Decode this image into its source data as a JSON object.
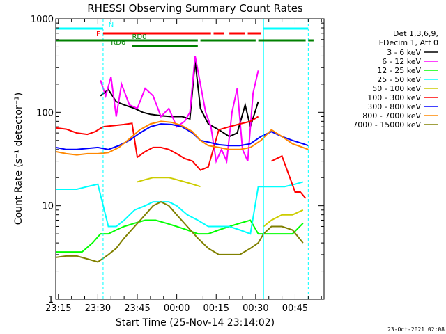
{
  "chart_data": {
    "type": "line",
    "title": "RHESSI Observing Summary Count Rates",
    "xlabel": "Start Time (25-Nov-14 23:14:02)",
    "ylabel": "Count Rate (s⁻¹ detector⁻¹)",
    "y_scale": "log",
    "ylim": [
      1,
      1000
    ],
    "xlim_minutes": [
      0,
      102
    ],
    "x_ticks": [
      {
        "label": "23:15",
        "t": 1
      },
      {
        "label": "23:30",
        "t": 16
      },
      {
        "label": "23:45",
        "t": 31
      },
      {
        "label": "00:00",
        "t": 46
      },
      {
        "label": "00:15",
        "t": 61
      },
      {
        "label": "00:30",
        "t": 76
      },
      {
        "label": "00:45",
        "t": 91
      }
    ],
    "y_ticks": [
      {
        "label": "1",
        "v": 1
      },
      {
        "label": "10",
        "v": 10
      },
      {
        "label": "100",
        "v": 100
      },
      {
        "label": "1000",
        "v": 1000
      }
    ],
    "legend_header": [
      "Det 1,3,6,9,",
      "FDecim 1, Att 0"
    ],
    "legend_position": "right",
    "series": [
      {
        "name": "3 - 6 keV",
        "color": "#000000",
        "t": [
          0,
          15,
          17,
          20,
          23,
          26,
          30,
          33,
          36,
          40,
          44,
          48,
          51,
          53,
          55,
          58,
          62,
          66,
          69,
          72,
          74,
          77,
          79,
          82,
          87,
          92,
          94
        ],
        "values": [
          null,
          null,
          150,
          175,
          130,
          120,
          110,
          100,
          95,
          92,
          90,
          90,
          85,
          350,
          110,
          75,
          65,
          55,
          60,
          120,
          70,
          130,
          null,
          null,
          null,
          null,
          null
        ]
      },
      {
        "name": "6 - 12 keV",
        "color": "#ff00ff",
        "t": [
          0,
          15,
          17,
          19,
          21,
          23,
          25,
          28,
          31,
          34,
          37,
          40,
          43,
          46,
          49,
          51,
          53,
          55,
          57,
          59,
          61,
          63,
          65,
          67,
          69,
          71,
          73,
          75,
          77,
          79
        ],
        "values": [
          null,
          null,
          220,
          150,
          240,
          90,
          200,
          120,
          110,
          180,
          150,
          90,
          110,
          70,
          80,
          100,
          400,
          200,
          100,
          70,
          30,
          40,
          30,
          100,
          180,
          40,
          30,
          160,
          280,
          null
        ]
      },
      {
        "name": "12 - 25 keV",
        "color": "#00ff00",
        "t": [
          0,
          5,
          10,
          14,
          17,
          20,
          23,
          26,
          30,
          34,
          38,
          42,
          46,
          50,
          54,
          58,
          62,
          66,
          70,
          74,
          77,
          79,
          82,
          86,
          90,
          94
        ],
        "values": [
          3.2,
          3.2,
          3.2,
          4,
          5,
          5,
          5.5,
          6,
          6.5,
          7,
          7,
          6.5,
          6,
          5.5,
          5,
          5,
          5.5,
          6,
          6.5,
          7,
          5,
          5,
          5,
          5,
          5,
          6.5
        ]
      },
      {
        "name": "25 - 50 keV",
        "color": "#00ffff",
        "t": [
          0,
          4,
          8,
          12,
          16,
          20,
          23,
          26,
          30,
          34,
          37,
          40,
          43,
          46,
          50,
          54,
          58,
          62,
          66,
          70,
          74,
          77,
          79,
          83,
          87,
          91,
          94
        ],
        "values": [
          15,
          15,
          15,
          16,
          17,
          6,
          6,
          7,
          9,
          10,
          11,
          11,
          11,
          10,
          8,
          7,
          6,
          6,
          6,
          5.5,
          5,
          16,
          16,
          16,
          16,
          17,
          18
        ]
      },
      {
        "name": "50 - 100 keV",
        "color": "#cccc00",
        "t": [
          0,
          28,
          31,
          34,
          37,
          40,
          43,
          46,
          49,
          52,
          55,
          58,
          64,
          70,
          74,
          76,
          77,
          79,
          82,
          86,
          90,
          94
        ],
        "values": [
          null,
          null,
          18,
          19,
          20,
          20,
          20,
          19,
          18,
          17,
          16,
          null,
          null,
          null,
          null,
          null,
          null,
          6,
          7,
          8,
          8,
          9
        ]
      },
      {
        "name": "100 - 300 keV",
        "color": "#ff0000",
        "t": [
          0,
          4,
          8,
          12,
          15,
          18,
          22,
          26,
          29,
          31,
          34,
          37,
          40,
          43,
          46,
          49,
          52,
          55,
          58,
          62,
          66,
          70,
          74,
          77,
          79,
          82,
          84,
          86,
          89,
          91,
          93,
          95
        ],
        "values": [
          68,
          66,
          60,
          58,
          62,
          70,
          72,
          74,
          76,
          33,
          38,
          42,
          42,
          40,
          36,
          32,
          30,
          24,
          26,
          65,
          70,
          75,
          80,
          90,
          null,
          30,
          32,
          34,
          20,
          14,
          14,
          12
        ]
      },
      {
        "name": "300 - 800 keV",
        "color": "#0000ff",
        "t": [
          0,
          4,
          8,
          12,
          16,
          20,
          24,
          28,
          32,
          36,
          40,
          44,
          48,
          52,
          55,
          58,
          62,
          66,
          70,
          74,
          78,
          82,
          86,
          90,
          94,
          96
        ],
        "values": [
          42,
          40,
          40,
          41,
          42,
          40,
          44,
          50,
          60,
          70,
          75,
          74,
          70,
          60,
          50,
          48,
          45,
          44,
          44,
          46,
          55,
          62,
          55,
          50,
          46,
          44
        ]
      },
      {
        "name": "800 - 7000 keV",
        "color": "#ff8800",
        "t": [
          0,
          4,
          8,
          12,
          16,
          20,
          24,
          28,
          32,
          36,
          40,
          44,
          48,
          52,
          55,
          58,
          62,
          66,
          70,
          74,
          78,
          82,
          86,
          90,
          94,
          96
        ],
        "values": [
          38,
          36,
          35,
          36,
          36,
          37,
          42,
          52,
          65,
          75,
          80,
          78,
          72,
          62,
          50,
          44,
          42,
          40,
          40,
          42,
          50,
          65,
          55,
          46,
          42,
          40
        ]
      },
      {
        "name": "7000 - 15000 keV",
        "color": "#808000",
        "t": [
          0,
          4,
          8,
          12,
          16,
          20,
          23,
          26,
          30,
          34,
          37,
          40,
          43,
          46,
          50,
          54,
          58,
          62,
          66,
          70,
          74,
          77,
          79,
          82,
          86,
          90,
          94
        ],
        "values": [
          2.8,
          2.9,
          2.9,
          2.7,
          2.5,
          3,
          3.5,
          4.5,
          6,
          8,
          10,
          11,
          10,
          8,
          6,
          4.5,
          3.5,
          3,
          3,
          3,
          3.5,
          4,
          5,
          6,
          6,
          5.5,
          4
        ]
      }
    ],
    "status_bars": [
      {
        "label": "N",
        "color": "#00ffff",
        "segments": [
          [
            0,
            18
          ],
          [
            79,
            96
          ]
        ]
      },
      {
        "label": "F",
        "color": "#ff0000",
        "segments": [
          [
            18,
            59
          ],
          [
            60,
            64
          ],
          [
            66,
            72
          ],
          [
            73,
            78
          ]
        ]
      },
      {
        "label": "RD0",
        "color": "#008000",
        "segments": [
          [
            0,
            54
          ],
          [
            55,
            76
          ],
          [
            77,
            95
          ],
          [
            96,
            98
          ]
        ]
      },
      {
        "label": "RD6",
        "color": "#008000",
        "segments": [
          [
            29,
            54
          ]
        ]
      }
    ],
    "vertical_lines": {
      "dashed": [
        18,
        96
      ],
      "solid": [
        79
      ]
    }
  },
  "footer_date": "23-Oct-2021 02:08"
}
